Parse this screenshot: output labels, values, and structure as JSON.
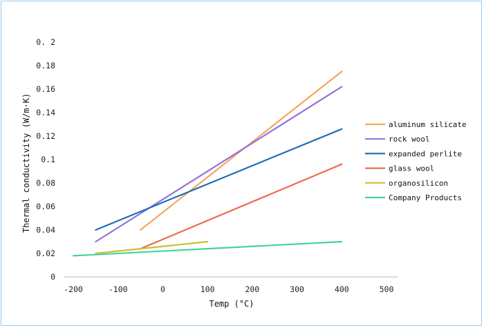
{
  "chart_data": {
    "type": "line",
    "title": "",
    "xlabel": "Temp (°C)",
    "ylabel": "Thermal conductivity (W/m·K)",
    "xlim": [
      -200,
      500
    ],
    "ylim": [
      0,
      0.2
    ],
    "x_ticks": [
      "-200",
      "-100",
      "0",
      "100",
      "200",
      "300",
      "400",
      "500"
    ],
    "y_ticks": [
      "0",
      "0.02",
      "0.04",
      "0.06",
      "0.08",
      "0.1",
      "0.12",
      "0.14",
      "0.16",
      "0.18",
      "0. 2"
    ],
    "x_tick_values": [
      -200,
      -100,
      0,
      100,
      200,
      300,
      400,
      500
    ],
    "y_tick_values": [
      0,
      0.02,
      0.04,
      0.06,
      0.08,
      0.1,
      0.12,
      0.14,
      0.16,
      0.18,
      0.2
    ],
    "grid": false,
    "legend_position": "right",
    "series": [
      {
        "name": "aluminum silicate",
        "color": "#f5a55a",
        "x": [
          -50,
          400
        ],
        "y": [
          0.04,
          0.175
        ]
      },
      {
        "name": "rock wool",
        "color": "#9370db",
        "x": [
          -150,
          400
        ],
        "y": [
          0.03,
          0.162
        ]
      },
      {
        "name": "expanded perlite",
        "color": "#1f6fb5",
        "x": [
          -150,
          400
        ],
        "y": [
          0.04,
          0.126
        ]
      },
      {
        "name": "glass wool",
        "color": "#ef6a53",
        "x": [
          -50,
          400
        ],
        "y": [
          0.024,
          0.096
        ]
      },
      {
        "name": "organosilicon",
        "color": "#c9c134",
        "x": [
          -150,
          100
        ],
        "y": [
          0.02,
          0.03
        ]
      },
      {
        "name": "Company Products",
        "color": "#44d499",
        "x": [
          -200,
          400
        ],
        "y": [
          0.018,
          0.03
        ]
      }
    ]
  }
}
